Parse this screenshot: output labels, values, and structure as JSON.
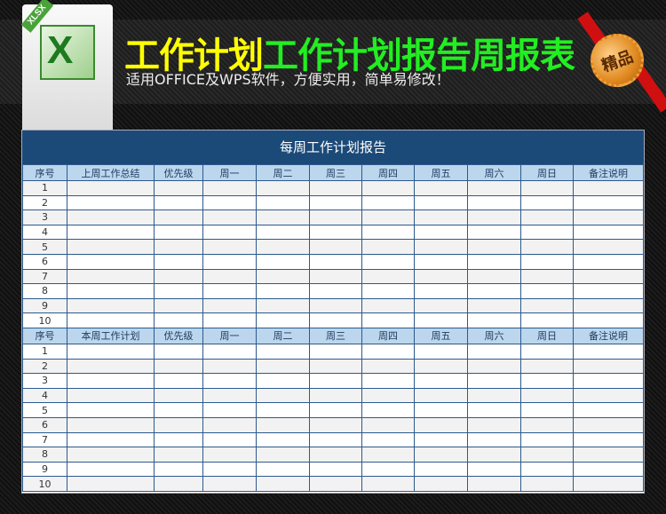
{
  "banner": {
    "badge": "XLSX",
    "title_yellow": "工作计划",
    "title_green": "工作计划报告周报表",
    "subtitle": "适用OFFICE及WPS软件，方便实用，简单易修改！",
    "medal": "精品"
  },
  "table": {
    "title": "每周工作计划报告",
    "header_last": [
      "序号",
      "上周工作总结",
      "优先级",
      "周一",
      "周二",
      "周三",
      "周四",
      "周五",
      "周六",
      "周日",
      "备注说明"
    ],
    "header_this": [
      "序号",
      "本周工作计划",
      "优先级",
      "周一",
      "周二",
      "周三",
      "周四",
      "周五",
      "周六",
      "周日",
      "备注说明"
    ],
    "rows": [
      "1",
      "2",
      "3",
      "4",
      "5",
      "6",
      "7",
      "8",
      "9",
      "10"
    ]
  },
  "colors": {
    "title_bg": "#1c4a78",
    "header_bg": "#bcd6ee",
    "yellow": "#ffff00",
    "green": "#22ee22"
  }
}
